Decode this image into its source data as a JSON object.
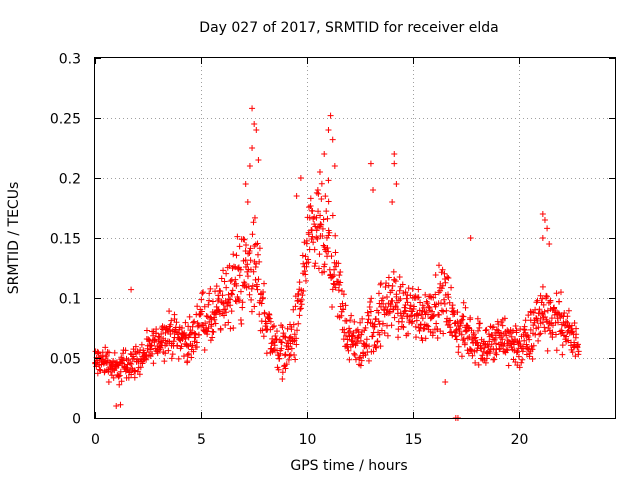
{
  "colors": {
    "series": "#ff0000",
    "grid": "#a0a0a0",
    "axis": "#000000"
  },
  "chart_data": {
    "type": "scatter",
    "title": "Day 027 of 2017, SRMTID for receiver elda",
    "xlabel": "GPS time / hours",
    "ylabel": "SRMTID / TECUs",
    "xlim": [
      0,
      24.5
    ],
    "ylim": [
      0,
      0.3
    ],
    "x_ticks": [
      0,
      5,
      10,
      15,
      20
    ],
    "x_tick_labels": [
      "0",
      "5",
      "10",
      "15",
      "20"
    ],
    "y_ticks": [
      0,
      0.05,
      0.1,
      0.15,
      0.2,
      0.25,
      0.3
    ],
    "y_tick_labels": [
      "0",
      "0.05",
      "0.1",
      "0.15",
      "0.2",
      "0.25",
      "0.3"
    ],
    "grid": true,
    "marker": "+",
    "sampling_interval_hours": 0.0333,
    "series": [
      {
        "name": "SRMTID",
        "x": [
          0.0,
          0.5,
          1.0,
          1.5,
          2.0,
          2.5,
          3.0,
          3.5,
          4.0,
          4.5,
          5.0,
          5.5,
          6.0,
          6.5,
          7.0,
          7.5,
          8.0,
          8.5,
          9.0,
          9.5,
          10.0,
          10.5,
          11.0,
          11.5,
          12.0,
          12.5,
          13.0,
          13.5,
          14.0,
          14.5,
          15.0,
          15.5,
          16.0,
          16.5,
          17.0,
          17.5,
          18.0,
          18.5,
          19.0,
          19.5,
          20.0,
          20.5,
          21.0,
          21.5,
          22.0,
          22.5,
          22.8
        ],
        "y": [
          0.045,
          0.048,
          0.04,
          0.045,
          0.048,
          0.055,
          0.065,
          0.07,
          0.068,
          0.062,
          0.085,
          0.08,
          0.095,
          0.11,
          0.12,
          0.13,
          0.085,
          0.06,
          0.055,
          0.075,
          0.14,
          0.155,
          0.14,
          0.1,
          0.065,
          0.06,
          0.075,
          0.085,
          0.1,
          0.09,
          0.09,
          0.085,
          0.095,
          0.1,
          0.075,
          0.07,
          0.065,
          0.06,
          0.065,
          0.065,
          0.06,
          0.065,
          0.09,
          0.085,
          0.08,
          0.065,
          0.06
        ],
        "spread": [
          0.02,
          0.02,
          0.02,
          0.02,
          0.02,
          0.02,
          0.02,
          0.025,
          0.025,
          0.025,
          0.03,
          0.035,
          0.04,
          0.05,
          0.06,
          0.065,
          0.04,
          0.03,
          0.03,
          0.04,
          0.05,
          0.06,
          0.06,
          0.05,
          0.03,
          0.03,
          0.04,
          0.04,
          0.04,
          0.035,
          0.035,
          0.035,
          0.035,
          0.04,
          0.03,
          0.03,
          0.03,
          0.03,
          0.03,
          0.03,
          0.03,
          0.035,
          0.04,
          0.035,
          0.03,
          0.03,
          0.02
        ],
        "peaks": [
          {
            "x": 1.0,
            "y": 0.01
          },
          {
            "x": 1.2,
            "y": 0.011
          },
          {
            "x": 1.7,
            "y": 0.107
          },
          {
            "x": 7.4,
            "y": 0.258
          },
          {
            "x": 7.5,
            "y": 0.245
          },
          {
            "x": 7.6,
            "y": 0.24
          },
          {
            "x": 7.4,
            "y": 0.225
          },
          {
            "x": 7.7,
            "y": 0.215
          },
          {
            "x": 7.3,
            "y": 0.21
          },
          {
            "x": 7.2,
            "y": 0.18
          },
          {
            "x": 7.1,
            "y": 0.195
          },
          {
            "x": 9.5,
            "y": 0.185
          },
          {
            "x": 9.7,
            "y": 0.2
          },
          {
            "x": 11.1,
            "y": 0.252
          },
          {
            "x": 11.0,
            "y": 0.24
          },
          {
            "x": 11.2,
            "y": 0.232
          },
          {
            "x": 10.8,
            "y": 0.22
          },
          {
            "x": 11.3,
            "y": 0.21
          },
          {
            "x": 10.6,
            "y": 0.205
          },
          {
            "x": 11.0,
            "y": 0.198
          },
          {
            "x": 10.5,
            "y": 0.19
          },
          {
            "x": 13.0,
            "y": 0.212
          },
          {
            "x": 13.1,
            "y": 0.19
          },
          {
            "x": 14.1,
            "y": 0.22
          },
          {
            "x": 14.1,
            "y": 0.212
          },
          {
            "x": 14.2,
            "y": 0.195
          },
          {
            "x": 14.0,
            "y": 0.18
          },
          {
            "x": 16.5,
            "y": 0.03
          },
          {
            "x": 17.0,
            "y": 0.0
          },
          {
            "x": 17.1,
            "y": 0.0
          },
          {
            "x": 17.7,
            "y": 0.15
          },
          {
            "x": 21.1,
            "y": 0.17
          },
          {
            "x": 21.2,
            "y": 0.165
          },
          {
            "x": 21.3,
            "y": 0.158
          },
          {
            "x": 21.1,
            "y": 0.15
          },
          {
            "x": 21.4,
            "y": 0.145
          }
        ]
      }
    ]
  }
}
